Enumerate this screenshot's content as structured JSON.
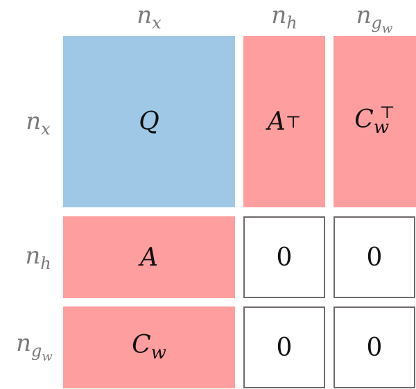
{
  "col_labels": [
    {
      "base": "n",
      "sub": "x"
    },
    {
      "base": "n",
      "sub": "h"
    },
    {
      "base": "n",
      "sub": "g",
      "subsub": "w"
    }
  ],
  "row_labels": [
    {
      "base": "n",
      "sub": "x"
    },
    {
      "base": "n",
      "sub": "h"
    },
    {
      "base": "n",
      "sub": "g",
      "subsub": "w"
    }
  ],
  "blocks": {
    "q": {
      "base": "Q"
    },
    "at": {
      "base": "A",
      "sup": "⊤"
    },
    "cwt": {
      "base": "C",
      "sub": "w",
      "sup": "⊤"
    },
    "a": {
      "base": "A"
    },
    "cw": {
      "base": "C",
      "sub": "w"
    },
    "zero": "0"
  },
  "colors": {
    "hessian": "#9fc8e6",
    "constraint": "#ff9e9e",
    "zero_border": "#6f6a6a",
    "label": "#7a7a7a"
  }
}
